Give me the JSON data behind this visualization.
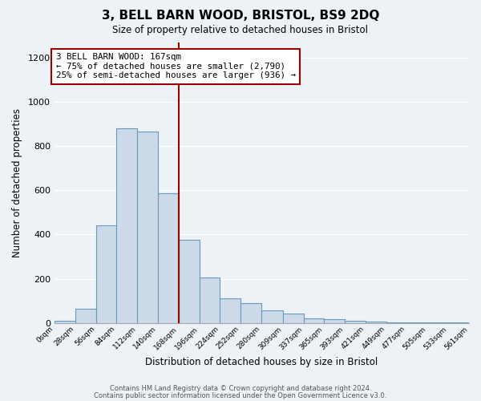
{
  "title": "3, BELL BARN WOOD, BRISTOL, BS9 2DQ",
  "subtitle": "Size of property relative to detached houses in Bristol",
  "xlabel": "Distribution of detached houses by size in Bristol",
  "ylabel": "Number of detached properties",
  "bar_color": "#ccd9e8",
  "bar_edge_color": "#6699bb",
  "background_color": "#edf2f7",
  "grid_color": "#ffffff",
  "vline_value": 168,
  "vline_color": "#990000",
  "annotation_text": "3 BELL BARN WOOD: 167sqm\n← 75% of detached houses are smaller (2,790)\n25% of semi-detached houses are larger (936) →",
  "annotation_box_color": "white",
  "annotation_box_edge": "#990000",
  "bins": [
    0,
    28,
    56,
    84,
    112,
    140,
    168,
    196,
    224,
    252,
    280,
    309,
    337,
    365,
    393,
    421,
    449,
    477,
    505,
    533,
    561
  ],
  "counts": [
    10,
    65,
    440,
    880,
    865,
    585,
    375,
    205,
    113,
    88,
    57,
    44,
    20,
    16,
    8,
    5,
    3,
    2,
    1,
    2
  ],
  "ylim": [
    0,
    1270
  ],
  "yticks": [
    0,
    200,
    400,
    600,
    800,
    1000,
    1200
  ],
  "footnote1": "Contains HM Land Registry data © Crown copyright and database right 2024.",
  "footnote2": "Contains public sector information licensed under the Open Government Licence v3.0."
}
